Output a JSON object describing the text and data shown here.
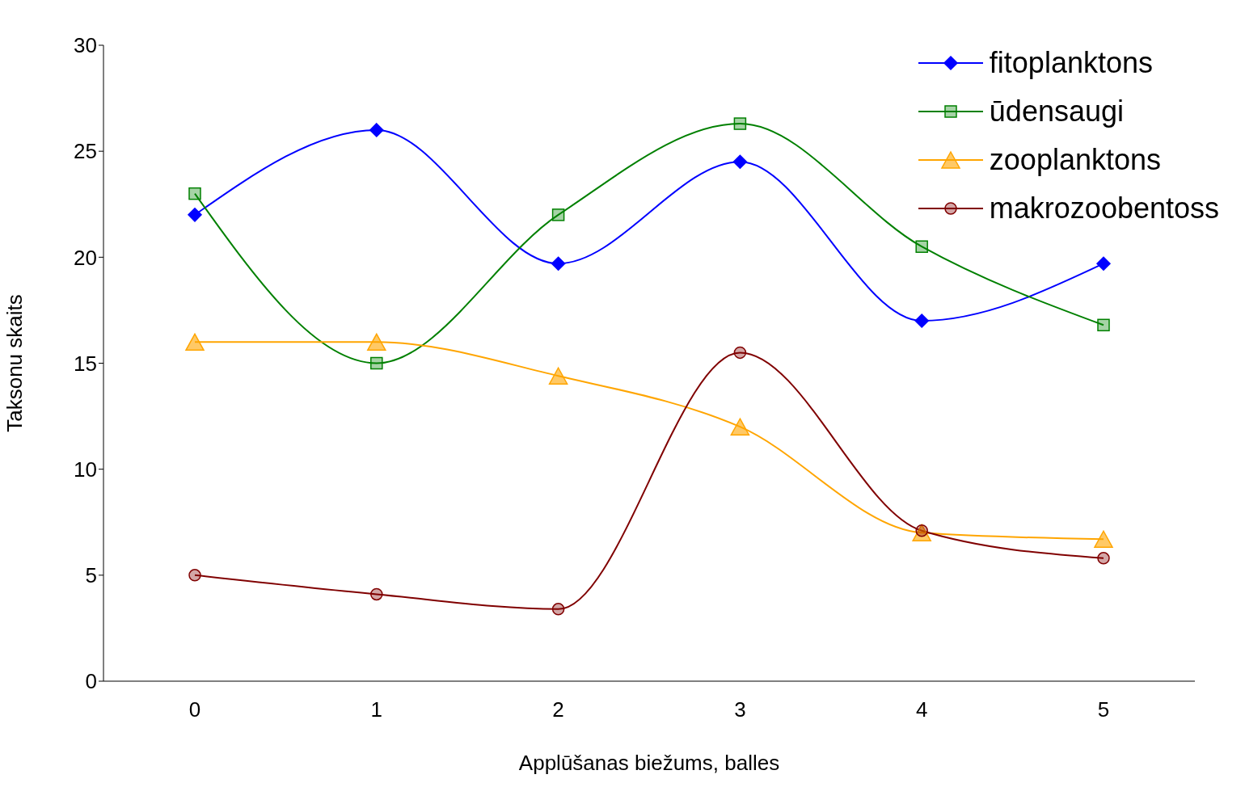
{
  "chart_data": {
    "type": "line",
    "xlabel": "Applūšanas biežums, balles",
    "ylabel": "Taksonu skaits",
    "categories": [
      "0",
      "1",
      "2",
      "3",
      "4",
      "5"
    ],
    "ylim": [
      0,
      30
    ],
    "yticks": [
      0,
      5,
      10,
      15,
      20,
      25,
      30
    ],
    "grid": false,
    "legend": "top right",
    "series": [
      {
        "name": "fitoplanktons",
        "color": "#0000ff",
        "marker": "diamond",
        "values": [
          22,
          26,
          19.7,
          24.5,
          17,
          19.7
        ]
      },
      {
        "name": "ūdensaugi",
        "color": "#008000",
        "marker": "square",
        "values": [
          23,
          15,
          22,
          26.3,
          20.5,
          16.8
        ]
      },
      {
        "name": "zooplanktons",
        "color": "#ffa500",
        "marker": "triangle",
        "values": [
          16,
          16,
          14.4,
          12,
          7,
          6.7
        ]
      },
      {
        "name": "makrozoobentoss",
        "color": "#800000",
        "marker": "circle",
        "values": [
          5,
          4.1,
          3.4,
          15.5,
          7.1,
          5.8
        ]
      }
    ]
  }
}
